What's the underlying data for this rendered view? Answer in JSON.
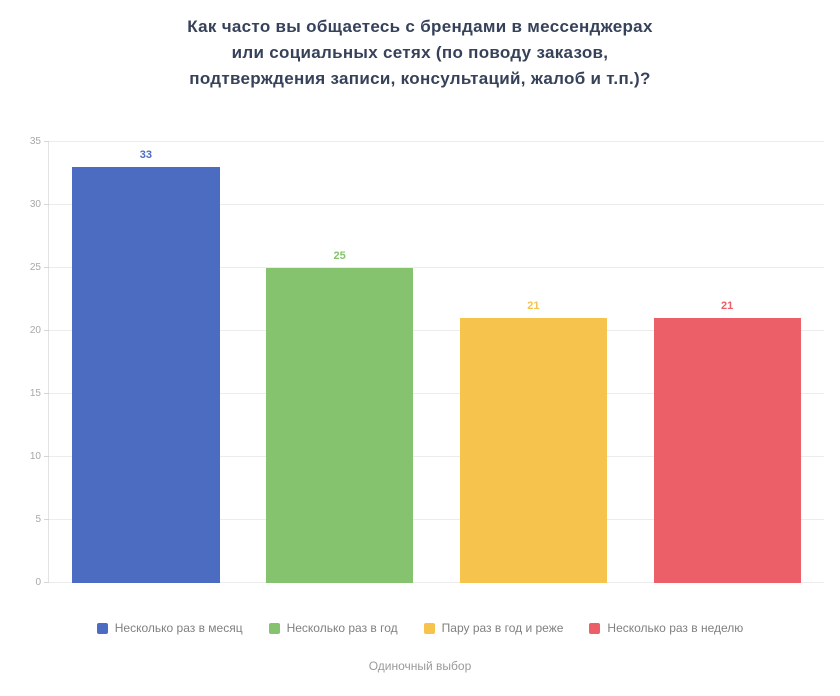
{
  "title": {
    "line1": "Как часто вы общаетесь с брендами в мессенджерах",
    "line2": "или социальных сетях (по поводу заказов,",
    "line3": "подтверждения записи, консультаций, жалоб и т.п.)?"
  },
  "footer": "Одиночный выбор",
  "chart_data": {
    "type": "bar",
    "title": "Как часто вы общаетесь с брендами в мессенджерах или социальных сетях (по поводу заказов, подтверждения записи, консультаций, жалоб и т.п.)?",
    "categories": [
      "Несколько раз в месяц",
      "Несколько раз в год",
      "Пару раз в год и реже",
      "Несколько раз в неделю"
    ],
    "values": [
      33,
      25,
      21,
      21
    ],
    "colors": [
      "#4c6cc2",
      "#85c36e",
      "#f6c34c",
      "#ec5e68"
    ],
    "xlabel": "",
    "ylabel": "",
    "ylim": [
      0,
      35
    ],
    "yticks": [
      0,
      5,
      10,
      15,
      20,
      25,
      30,
      35
    ],
    "grid": true,
    "legend_position": "bottom",
    "subtitle": "Одиночный выбор"
  }
}
